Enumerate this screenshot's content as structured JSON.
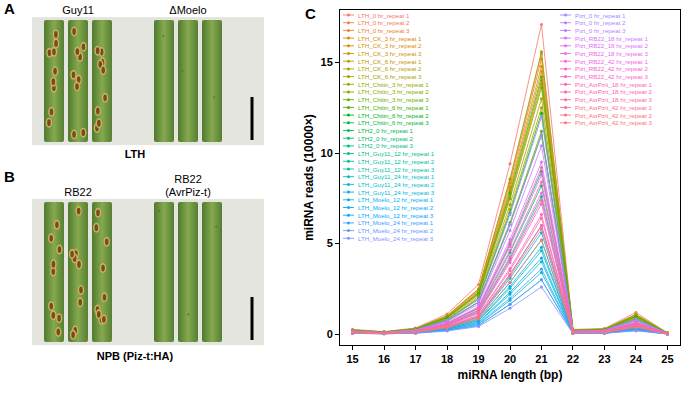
{
  "panels": [
    {
      "label": "A",
      "groups": [
        [
          "Guy11"
        ],
        [
          "ΔMoelo"
        ]
      ],
      "caption": "LTH"
    },
    {
      "label": "B",
      "groups": [
        [
          "RB22"
        ],
        [
          "RB22",
          "(AvrPiz-t)"
        ]
      ],
      "caption": "NPB (Piz-t:HA)"
    }
  ],
  "chart_data": {
    "type": "line",
    "panel_label": "C",
    "x_label": "miRNA length (bp)",
    "y_label": "miRNA reads (10000×)",
    "x": [
      15,
      16,
      17,
      18,
      19,
      20,
      21,
      22,
      23,
      24,
      25
    ],
    "xlim": [
      14.6,
      25.4
    ],
    "xticks": [
      15,
      16,
      17,
      18,
      19,
      20,
      21,
      22,
      23,
      24,
      25
    ],
    "ylim": [
      -0.6,
      17.9
    ],
    "yticks": [
      0,
      5,
      10,
      15
    ],
    "grid": false,
    "legend": "upper left",
    "marker": "circle",
    "series": [
      {
        "name": "LTH_0 hr_repeat 1",
        "color": "#F8766D",
        "values": [
          0.26,
          0.14,
          0.34,
          1.11,
          2.74,
          9.41,
          17.1,
          0.26,
          0.31,
          1.2,
          0.07
        ]
      },
      {
        "name": "LTH_0 hr_repeat 2",
        "color": "#F27D53",
        "values": [
          0.23,
          0.12,
          0.31,
          1.01,
          2.48,
          8.53,
          15.5,
          0.23,
          0.28,
          1.09,
          0.06
        ]
      },
      {
        "name": "LTH_0 hr_repeat 3",
        "color": "#EA8331",
        "values": [
          0.22,
          0.12,
          0.3,
          0.96,
          2.37,
          8.14,
          14.8,
          0.22,
          0.27,
          1.04,
          0.06
        ]
      },
      {
        "name": "LTH_CK_3 hr_repeat 1",
        "color": "#E38900",
        "values": [
          0.23,
          0.12,
          0.3,
          0.99,
          2.43,
          8.36,
          15.2,
          0.23,
          0.27,
          1.06,
          0.06
        ]
      },
      {
        "name": "LTH_CK_3 hr_repeat 2",
        "color": "#D89000",
        "values": [
          0.22,
          0.12,
          0.29,
          0.94,
          2.32,
          7.98,
          14.5,
          0.22,
          0.26,
          1.02,
          0.06
        ]
      },
      {
        "name": "LTH_CK_3 hr_repeat 3",
        "color": "#CD9600",
        "values": [
          0.21,
          0.11,
          0.28,
          0.9,
          2.21,
          7.59,
          13.8,
          0.21,
          0.25,
          0.97,
          0.06
        ]
      },
      {
        "name": "LTH_CK_6 hr_repeat 1",
        "color": "#C09B00",
        "values": [
          0.21,
          0.11,
          0.28,
          0.91,
          2.24,
          7.7,
          14.0,
          0.21,
          0.25,
          0.98,
          0.06
        ]
      },
      {
        "name": "LTH_CK_6 hr_repeat 2",
        "color": "#B39F00",
        "values": [
          0.2,
          0.1,
          0.26,
          0.85,
          2.08,
          7.15,
          13.0,
          0.2,
          0.23,
          0.91,
          0.05
        ]
      },
      {
        "name": "LTH_CK_6 hr_repeat 3",
        "color": "#A3A500",
        "values": [
          0.19,
          0.1,
          0.25,
          0.81,
          2.0,
          6.88,
          12.5,
          0.19,
          0.23,
          0.88,
          0.05
        ]
      },
      {
        "name": "LTH_Chitin_3 hr_repeat 1",
        "color": "#93AA00",
        "values": [
          0.23,
          0.12,
          0.31,
          1.01,
          2.5,
          8.58,
          15.6,
          0.23,
          0.28,
          1.09,
          0.06
        ]
      },
      {
        "name": "LTH_Chitin_3 hr_repeat 2",
        "color": "#7FAE00",
        "values": [
          0.2,
          0.11,
          0.27,
          0.88,
          2.18,
          7.48,
          13.6,
          0.2,
          0.24,
          0.95,
          0.05
        ]
      },
      {
        "name": "LTH_Chitin_3 hr_repeat 3",
        "color": "#65B200",
        "values": [
          0.17,
          0.09,
          0.22,
          0.73,
          1.79,
          6.16,
          11.2,
          0.17,
          0.2,
          0.78,
          0.04
        ]
      },
      {
        "name": "LTH_Chitin_6 hr_repeat 1",
        "color": "#3FB600",
        "values": [
          0.21,
          0.11,
          0.28,
          0.92,
          2.27,
          7.81,
          14.2,
          0.21,
          0.26,
          0.99,
          0.06
        ]
      },
      {
        "name": "LTH_Chitin_6 hr_repeat 2",
        "color": "#00B813",
        "values": [
          0.18,
          0.1,
          0.24,
          0.79,
          1.95,
          6.71,
          12.2,
          0.18,
          0.22,
          0.85,
          0.05
        ]
      },
      {
        "name": "LTH_Chitin_6 hr_repeat 3",
        "color": "#00BA38",
        "values": [
          0.17,
          0.09,
          0.22,
          0.72,
          1.76,
          6.05,
          11.0,
          0.17,
          0.2,
          0.77,
          0.04
        ]
      },
      {
        "name": "LTH2_0 hr_repeat 1",
        "color": "#00BC55",
        "values": [
          0.14,
          0.07,
          0.18,
          0.59,
          1.44,
          4.95,
          9.0,
          0.14,
          0.16,
          0.63,
          0.04
        ]
      },
      {
        "name": "LTH2_0 hr_repeat 2",
        "color": "#00BE6D",
        "values": [
          0.12,
          0.07,
          0.16,
          0.53,
          1.31,
          4.51,
          8.2,
          0.12,
          0.15,
          0.57,
          0.03
        ]
      },
      {
        "name": "LTH2_0 hr_repeat 3",
        "color": "#00BF7D",
        "values": [
          0.11,
          0.06,
          0.15,
          0.49,
          1.22,
          4.18,
          7.6,
          0.11,
          0.14,
          0.53,
          0.03
        ]
      },
      {
        "name": "LTH_Guy11_12 hr_repeat 1",
        "color": "#00C08E",
        "values": [
          0.09,
          0.05,
          0.12,
          0.39,
          0.96,
          3.3,
          6.0,
          0.09,
          0.11,
          0.42,
          0.02
        ]
      },
      {
        "name": "LTH_Guy11_12 hr_repeat 2",
        "color": "#00C19F",
        "values": [
          0.08,
          0.04,
          0.1,
          0.34,
          0.83,
          2.86,
          5.2,
          0.08,
          0.09,
          0.36,
          0.02
        ]
      },
      {
        "name": "LTH_Guy11_12 hr_repeat 3",
        "color": "#00C0AF",
        "values": [
          0.07,
          0.04,
          0.09,
          0.3,
          0.74,
          2.53,
          4.6,
          0.07,
          0.08,
          0.32,
          0.02
        ]
      },
      {
        "name": "LTH_Guy11_24 hr_repeat 1",
        "color": "#00BEBE",
        "values": [
          0.06,
          0.03,
          0.08,
          0.26,
          0.64,
          2.2,
          4.0,
          0.06,
          0.07,
          0.28,
          0.02
        ]
      },
      {
        "name": "LTH_Guy11_24 hr_repeat 2",
        "color": "#00BCD0",
        "values": [
          0.05,
          0.03,
          0.07,
          0.22,
          0.54,
          1.87,
          3.4,
          0.05,
          0.06,
          0.24,
          0.01
        ]
      },
      {
        "name": "LTH_Guy11_24 hr_repeat 3",
        "color": "#00B8DE",
        "values": [
          0.05,
          0.02,
          0.06,
          0.2,
          0.48,
          1.65,
          3.0,
          0.05,
          0.05,
          0.21,
          0.01
        ]
      },
      {
        "name": "LTH_Moelo_12 hr_repeat 1",
        "color": "#00B4EA",
        "values": [
          0.08,
          0.04,
          0.11,
          0.36,
          0.9,
          3.08,
          5.6,
          0.08,
          0.1,
          0.39,
          0.02
        ]
      },
      {
        "name": "LTH_Moelo_12 hr_repeat 2",
        "color": "#00B0F6",
        "values": [
          0.07,
          0.04,
          0.1,
          0.31,
          0.77,
          2.64,
          4.8,
          0.07,
          0.09,
          0.34,
          0.02
        ]
      },
      {
        "name": "LTH_Moelo_12 hr_repeat 3",
        "color": "#00A9FF",
        "values": [
          0.06,
          0.03,
          0.08,
          0.27,
          0.67,
          2.31,
          4.2,
          0.06,
          0.08,
          0.29,
          0.02
        ]
      },
      {
        "name": "LTH_Moelo_24 hr_repeat 1",
        "color": "#35A2FF",
        "values": [
          0.05,
          0.03,
          0.07,
          0.23,
          0.58,
          1.98,
          3.6,
          0.05,
          0.06,
          0.25,
          0.01
        ]
      },
      {
        "name": "LTH_Moelo_24 hr_repeat 2",
        "color": "#619CFF",
        "values": [
          0.05,
          0.02,
          0.06,
          0.2,
          0.48,
          1.65,
          3.0,
          0.05,
          0.05,
          0.21,
          0.01
        ]
      },
      {
        "name": "LTH_Moelo_24 hr_repeat 3",
        "color": "#8295FF",
        "values": [
          0.04,
          0.02,
          0.05,
          0.17,
          0.42,
          1.43,
          2.6,
          0.04,
          0.05,
          0.18,
          0.01
        ]
      },
      {
        "name": "Pizt_0 hr_repeat 1",
        "color": "#9D8DFF",
        "values": [
          0.18,
          0.1,
          0.24,
          0.78,
          1.92,
          6.6,
          12.0,
          0.18,
          0.22,
          0.84,
          0.05
        ]
      },
      {
        "name": "Pizt_0 hr_repeat 2",
        "color": "#B385FF",
        "values": [
          0.17,
          0.09,
          0.22,
          0.72,
          1.76,
          6.05,
          11.0,
          0.17,
          0.2,
          0.77,
          0.04
        ]
      },
      {
        "name": "Pizt_0 hr_repeat 3",
        "color": "#C77CFF",
        "values": [
          0.16,
          0.08,
          0.21,
          0.68,
          1.66,
          5.72,
          10.4,
          0.16,
          0.19,
          0.73,
          0.04
        ]
      },
      {
        "name": "Pizt_RB22_18 hr_repeat 1",
        "color": "#D575FE",
        "values": [
          0.14,
          0.08,
          0.19,
          0.62,
          1.52,
          5.23,
          9.5,
          0.14,
          0.17,
          0.67,
          0.04
        ]
      },
      {
        "name": "Pizt_RB22_18 hr_repeat 2",
        "color": "#E26EF7",
        "values": [
          0.13,
          0.07,
          0.18,
          0.57,
          1.41,
          4.84,
          8.8,
          0.13,
          0.16,
          0.62,
          0.04
        ]
      },
      {
        "name": "Pizt_RB22_18 hr_repeat 3",
        "color": "#ED68ED",
        "values": [
          0.12,
          0.06,
          0.16,
          0.51,
          1.25,
          4.29,
          7.8,
          0.12,
          0.14,
          0.55,
          0.03
        ]
      },
      {
        "name": "Pizt_RB22_42 hr_repeat 1",
        "color": "#F564E3",
        "values": [
          0.11,
          0.06,
          0.14,
          0.47,
          1.15,
          3.96,
          7.2,
          0.11,
          0.13,
          0.5,
          0.03
        ]
      },
      {
        "name": "Pizt_RB22_42 hr_repeat 2",
        "color": "#FB61D7",
        "values": [
          0.1,
          0.05,
          0.13,
          0.43,
          1.06,
          3.63,
          6.6,
          0.1,
          0.12,
          0.46,
          0.03
        ]
      },
      {
        "name": "Pizt_RB22_42 hr_repeat 3",
        "color": "#FF61CC",
        "values": [
          0.09,
          0.05,
          0.12,
          0.39,
          0.96,
          3.3,
          6.0,
          0.09,
          0.11,
          0.42,
          0.02
        ]
      },
      {
        "name": "Pizt_AvrPzit_18 hr_repeat 1",
        "color": "#FF62BC",
        "values": [
          0.14,
          0.07,
          0.18,
          0.6,
          1.47,
          5.06,
          9.2,
          0.14,
          0.17,
          0.64,
          0.04
        ]
      },
      {
        "name": "Pizt_AvrPzit_18 hr_repeat 2",
        "color": "#FF65AE",
        "values": [
          0.13,
          0.07,
          0.17,
          0.55,
          1.34,
          4.62,
          8.4,
          0.13,
          0.15,
          0.59,
          0.03
        ]
      },
      {
        "name": "Pizt_AvrPzit_18 hr_repeat 3",
        "color": "#FF689F",
        "values": [
          0.11,
          0.06,
          0.15,
          0.48,
          1.18,
          4.07,
          7.4,
          0.11,
          0.13,
          0.52,
          0.03
        ]
      },
      {
        "name": "Pizt_AvrPzit_42 hr_repeat 1",
        "color": "#FC6F8E",
        "values": [
          0.1,
          0.05,
          0.13,
          0.42,
          1.02,
          3.52,
          6.4,
          0.1,
          0.12,
          0.45,
          0.03
        ]
      },
      {
        "name": "Pizt_AvrPzit_42 hr_repeat 2",
        "color": "#F9727E",
        "values": [
          0.09,
          0.05,
          0.12,
          0.38,
          0.93,
          3.19,
          5.8,
          0.09,
          0.1,
          0.41,
          0.02
        ]
      },
      {
        "name": "Pizt_AvrPzit_42 hr_repeat 3",
        "color": "#F57A73",
        "values": [
          0.08,
          0.04,
          0.1,
          0.34,
          0.83,
          2.86,
          5.2,
          0.08,
          0.09,
          0.36,
          0.02
        ]
      }
    ]
  }
}
